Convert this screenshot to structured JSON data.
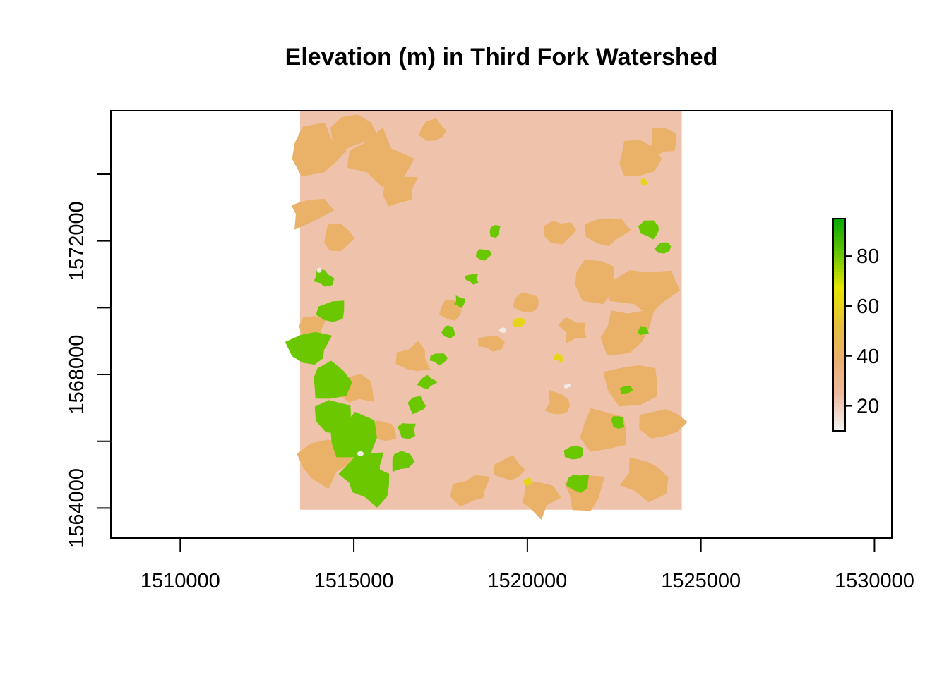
{
  "chart_data": {
    "type": "heatmap",
    "title": "Elevation (m) in Third Fork Watershed",
    "xlabel": "",
    "ylabel": "",
    "xlim": [
      1508000,
      1530500
    ],
    "ylim": [
      1563100,
      1575900
    ],
    "x_ticks": [
      1510000,
      1515000,
      1520000,
      1525000,
      1530000
    ],
    "y_ticks": [
      1564000,
      1568000,
      1572000
    ],
    "raster_extent": {
      "xmin": 1513450,
      "xmax": 1524450,
      "ymin": 1563950,
      "ymax": 1575900
    },
    "value_range": [
      10,
      95
    ],
    "legend": {
      "placement": "right",
      "ticks": [
        20,
        40,
        60,
        80
      ],
      "colors": [
        "#f2f2f2",
        "#eeb99f",
        "#eaaf6e",
        "#e6c03a",
        "#e6e600",
        "#63c600",
        "#00a600"
      ]
    },
    "terrain": {
      "background": 22,
      "low_plateau": 40,
      "ridge": 80,
      "peak": 88,
      "light_patch": 12,
      "yellow_patch": 60
    },
    "grid": false
  }
}
